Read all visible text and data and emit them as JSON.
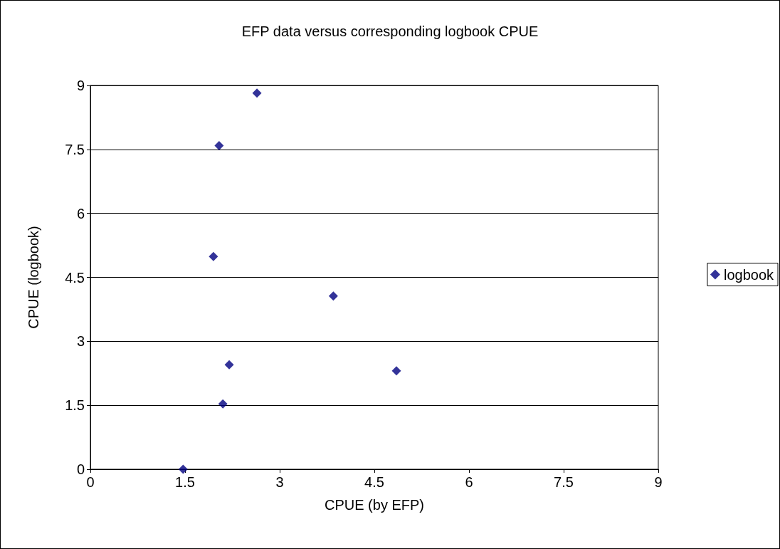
{
  "chart_data": {
    "type": "scatter",
    "title": "EFP data versus corresponding logbook CPUE",
    "xlabel": "CPUE (by EFP)",
    "ylabel": "CPUE (logbook)",
    "series": [
      {
        "name": "logbook",
        "color": "#000080",
        "x": [
          1.47,
          2.1,
          2.2,
          1.95,
          2.04,
          2.64,
          3.85,
          4.85
        ],
        "values": [
          0,
          1.53,
          2.45,
          4.99,
          7.59,
          8.82,
          4.06,
          2.31
        ]
      }
    ],
    "xlim": [
      0,
      9
    ],
    "xticks": [
      0,
      1.5,
      3,
      4.5,
      6,
      7.5,
      9
    ],
    "ylim": [
      0,
      9
    ],
    "yticks": [
      0,
      1.5,
      3,
      4.5,
      6,
      7.5,
      9
    ],
    "grid": "y",
    "legend": "right",
    "marker": "diamond"
  }
}
